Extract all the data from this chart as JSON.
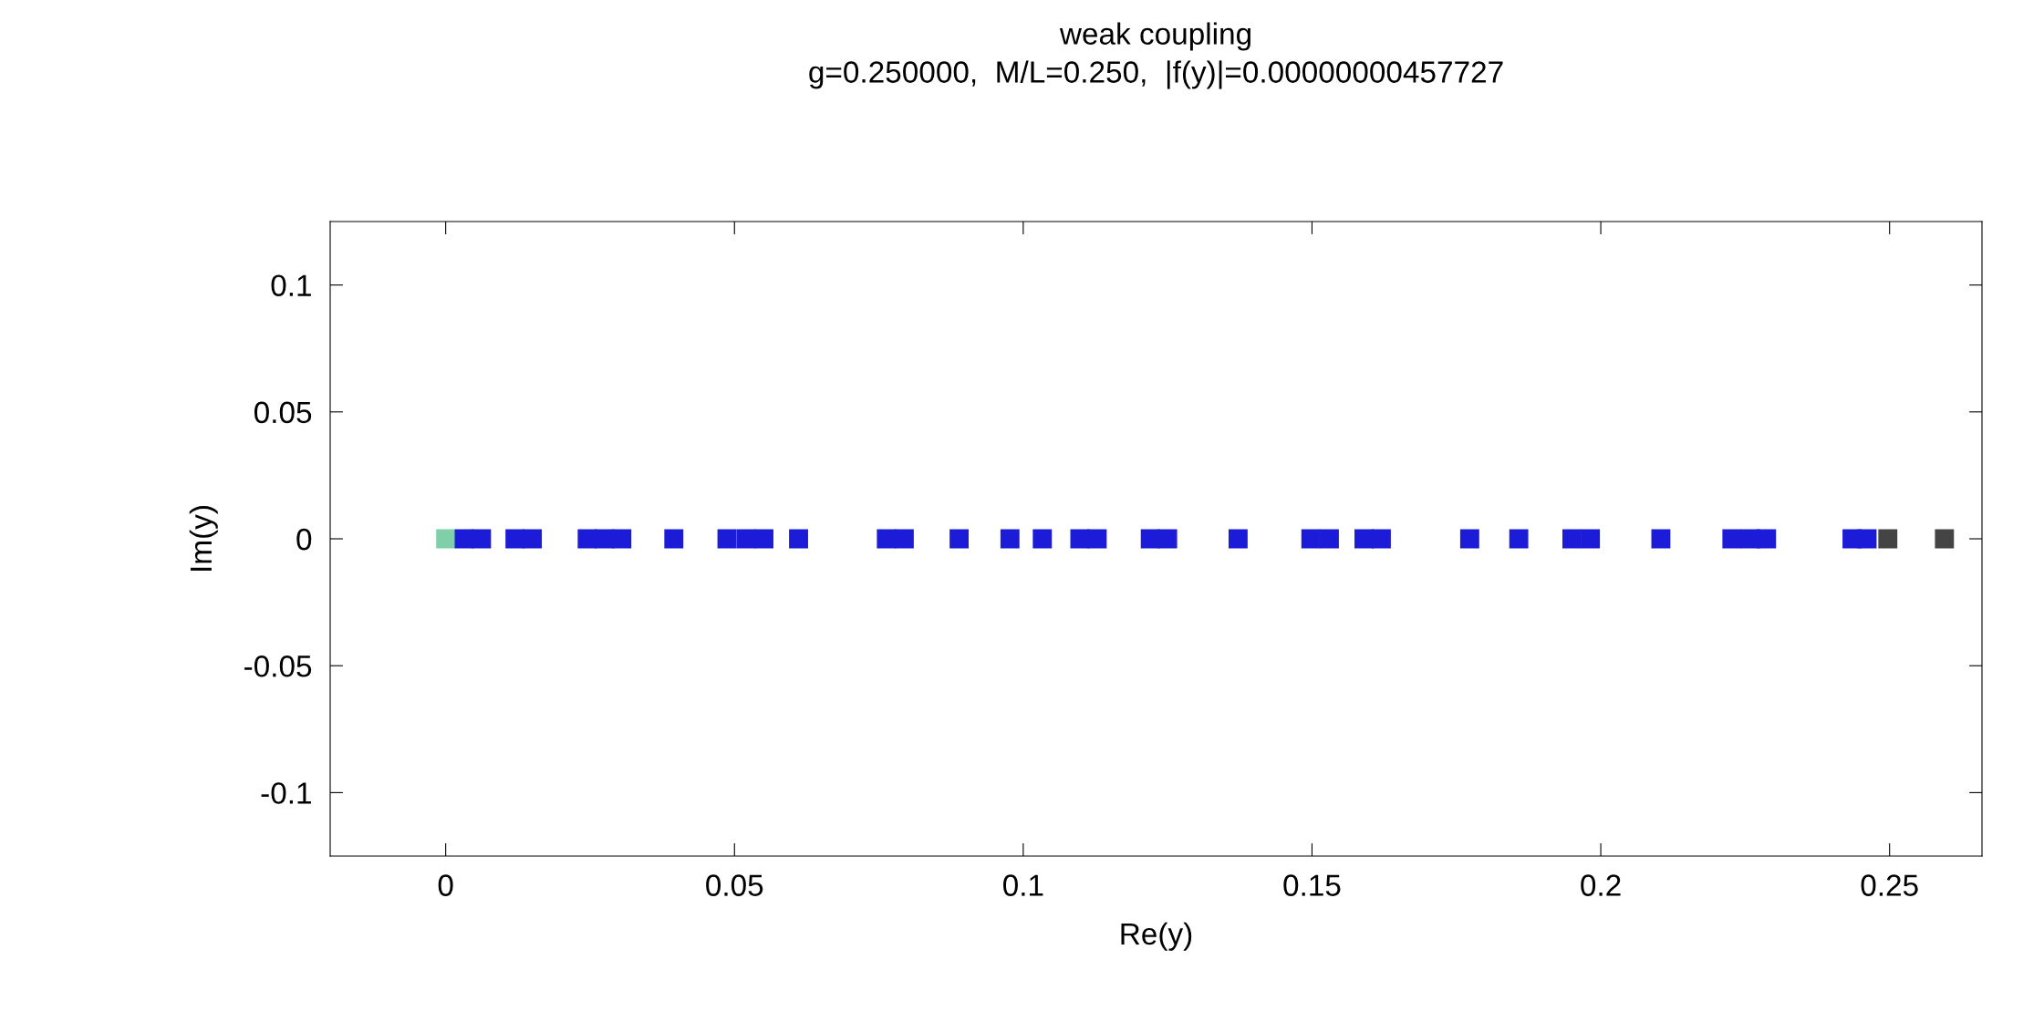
{
  "chart_data": {
    "type": "scatter",
    "title": "weak coupling",
    "subtitle": "g=0.250000,  M/L=0.250,  |f(y)|=0.00000000457727",
    "xlabel": "Re(y)",
    "ylabel": "Im(y)",
    "xlim": [
      -0.02,
      0.266
    ],
    "ylim": [
      -0.125,
      0.125
    ],
    "xticks": [
      0,
      0.05,
      0.1,
      0.15,
      0.2,
      0.25
    ],
    "yticks": [
      {
        "value": -0.1,
        "label": "-0.1"
      },
      {
        "value": -0.05,
        "label": "-0.05"
      },
      0,
      0.05,
      0.1
    ],
    "grid": false,
    "legend": false,
    "marker": "square",
    "series": [
      {
        "color": "#7fcfa8",
        "x": [
          0
        ],
        "values": [
          0
        ]
      },
      {
        "color": "#1c1cd8",
        "x": [
          0.0032,
          0.0062,
          0.012,
          0.015,
          0.0245,
          0.0275,
          0.0305,
          0.0395,
          0.0487,
          0.052,
          0.0551,
          0.0611,
          0.0763,
          0.0794,
          0.0889,
          0.0977,
          0.1033,
          0.1098,
          0.1128,
          0.122,
          0.125,
          0.1372,
          0.1498,
          0.153,
          0.159,
          0.162,
          0.1773,
          0.1858,
          0.195,
          0.1982,
          0.2104,
          0.2227,
          0.2259,
          0.2287,
          0.2435,
          0.2461
        ],
        "values": [
          0,
          0,
          0,
          0,
          0,
          0,
          0,
          0,
          0,
          0,
          0,
          0,
          0,
          0,
          0,
          0,
          0,
          0,
          0,
          0,
          0,
          0,
          0,
          0,
          0,
          0,
          0,
          0,
          0,
          0,
          0,
          0,
          0,
          0,
          0,
          0
        ]
      },
      {
        "color": "#444444",
        "x": [
          0.2497,
          0.2595
        ],
        "values": [
          0,
          0
        ]
      }
    ]
  }
}
